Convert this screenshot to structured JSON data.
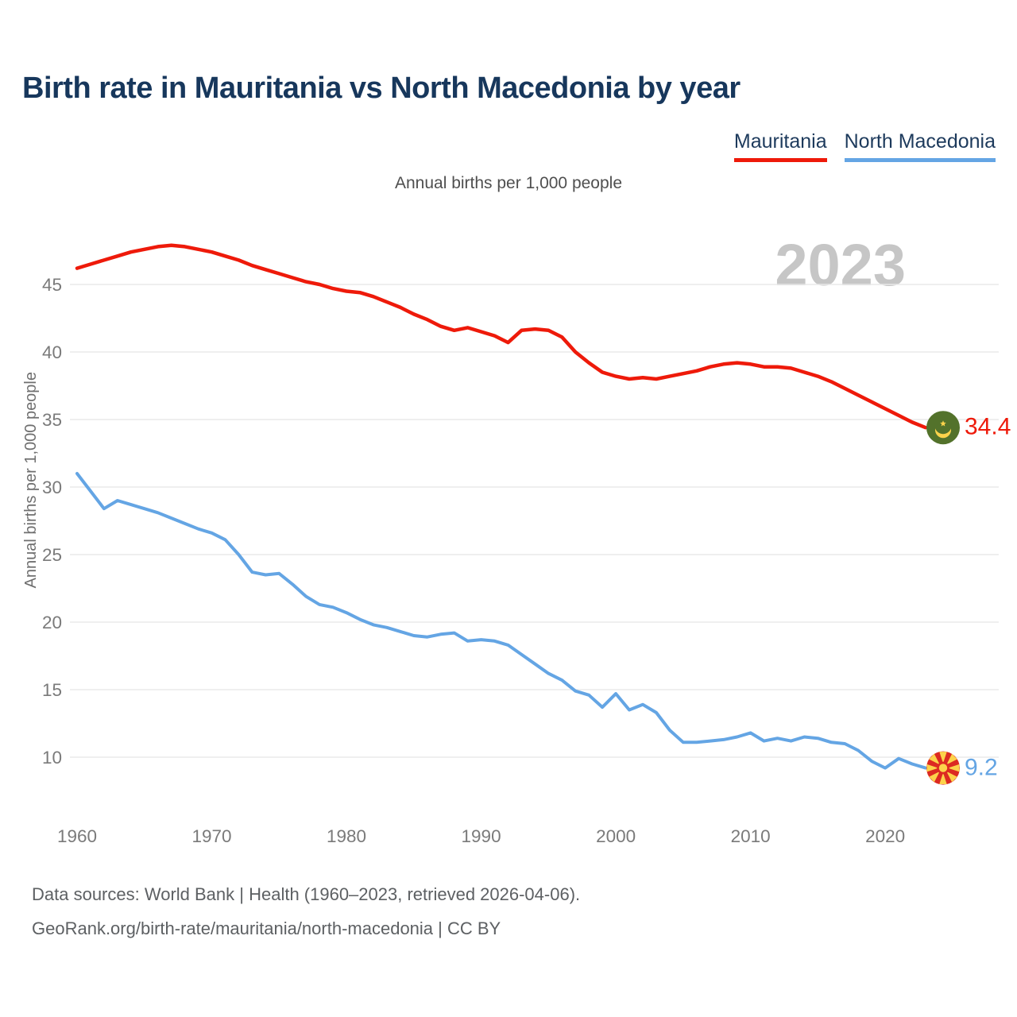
{
  "title": "Birth rate in Mauritania vs North Macedonia by year",
  "subtitle": "Annual births per 1,000 people",
  "watermark_year": "2023",
  "legend": [
    {
      "label": "Mauritania",
      "color": "#ee1a0a"
    },
    {
      "label": "North Macedonia",
      "color": "#64a5e4"
    }
  ],
  "end_labels": {
    "mauritania": {
      "value": "34.4",
      "flag_icon": "mauritania-flag",
      "color": "#ee1a0a"
    },
    "north_macedonia": {
      "value": "9.2",
      "flag_icon": "north-macedonia-flag",
      "color": "#64a5e4"
    }
  },
  "footer": {
    "line1": "Data sources: World Bank | Health (1960–2023, retrieved 2026-04-06).",
    "line2": "GeoRank.org/birth-rate/mauritania/north-macedonia | CC BY"
  },
  "colors": {
    "title_navy": "#17375c",
    "mauritania_red": "#ee1a0a",
    "north_macedonia_blue": "#64a5e4",
    "gridline_gray": "#eaeaea",
    "tick_gray": "#7a7a7a",
    "watermark_gray": "#c6c6c6",
    "flag_green": "#53722b",
    "flag_yellow": "#fcd34b",
    "flag_red": "#dc2a22"
  },
  "chart_data": {
    "type": "line",
    "title": "Birth rate in Mauritania vs North Macedonia by year",
    "subtitle_note": "Annual births per 1,000 people",
    "ylabel": "Annual births per 1,000 people",
    "xlabel": "",
    "x_start": 1960,
    "x_end": 2023,
    "xticks": [
      1960,
      1970,
      1980,
      1990,
      2000,
      2010,
      2020
    ],
    "yticks": [
      45,
      40,
      35,
      30,
      25,
      20,
      15,
      10
    ],
    "ylim": [
      9,
      48
    ],
    "grid": "horizontal-only",
    "legend_position": "top-right",
    "series": [
      {
        "name": "Mauritania",
        "color": "#ee1a0a",
        "stroke_width": 4.5,
        "end_value": 34.4,
        "values": [
          46.2,
          46.5,
          46.8,
          47.1,
          47.4,
          47.6,
          47.8,
          47.9,
          47.8,
          47.6,
          47.4,
          47.1,
          46.8,
          46.4,
          46.1,
          45.8,
          45.5,
          45.2,
          45.0,
          44.7,
          44.5,
          44.4,
          44.1,
          43.7,
          43.3,
          42.8,
          42.4,
          41.9,
          41.6,
          41.8,
          41.5,
          41.2,
          40.7,
          41.6,
          41.7,
          41.6,
          41.1,
          40.0,
          39.2,
          38.5,
          38.2,
          38.0,
          38.1,
          38.0,
          38.2,
          38.4,
          38.6,
          38.9,
          39.1,
          39.2,
          39.1,
          38.9,
          38.9,
          38.8,
          38.5,
          38.2,
          37.8,
          37.3,
          36.8,
          36.3,
          35.8,
          35.3,
          34.8,
          34.4
        ]
      },
      {
        "name": "North Macedonia",
        "color": "#64a5e4",
        "stroke_width": 4,
        "end_value": 9.2,
        "values": [
          31.0,
          29.7,
          28.4,
          29.0,
          28.7,
          28.4,
          28.1,
          27.7,
          27.3,
          26.9,
          26.6,
          26.1,
          25.0,
          23.7,
          23.5,
          23.6,
          22.8,
          21.9,
          21.3,
          21.1,
          20.7,
          20.2,
          19.8,
          19.6,
          19.3,
          19.0,
          18.9,
          19.1,
          19.2,
          18.6,
          18.7,
          18.6,
          18.3,
          17.6,
          16.9,
          16.2,
          15.7,
          14.9,
          14.6,
          13.7,
          14.7,
          13.5,
          13.9,
          13.3,
          12.0,
          11.1,
          11.1,
          11.2,
          11.3,
          11.5,
          11.8,
          11.2,
          11.4,
          11.2,
          11.5,
          11.4,
          11.1,
          11.0,
          10.5,
          9.7,
          9.2,
          9.9,
          9.5,
          9.2
        ]
      }
    ]
  }
}
